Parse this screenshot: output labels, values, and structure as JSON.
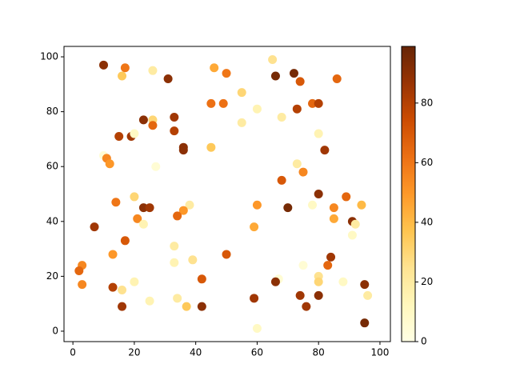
{
  "chart_data": {
    "type": "scatter",
    "x": [
      10,
      17,
      16,
      26,
      31,
      46,
      50,
      65,
      72,
      66,
      74,
      86,
      45,
      49,
      55,
      60,
      55,
      68,
      73,
      78,
      80,
      80,
      82,
      23,
      33,
      26,
      26,
      33,
      15,
      19,
      20,
      36,
      36,
      45,
      10,
      11,
      12,
      27,
      73,
      75,
      68,
      80,
      89,
      94,
      60,
      70,
      85,
      85,
      78,
      91,
      92,
      91,
      20,
      23,
      25,
      14,
      21,
      23,
      38,
      36,
      34,
      7,
      17,
      59,
      33,
      13,
      50,
      39,
      33,
      3,
      2,
      3,
      84,
      83,
      75,
      80,
      80,
      88,
      67,
      66,
      42,
      20,
      13,
      16,
      59,
      74,
      80,
      95,
      96,
      25,
      34,
      37,
      42,
      16,
      76,
      95,
      60
    ],
    "y": [
      97,
      96,
      93,
      95,
      92,
      96,
      94,
      99,
      94,
      93,
      91,
      92,
      83,
      83,
      87,
      81,
      76,
      78,
      81,
      83,
      83,
      72,
      66,
      77,
      78,
      77,
      75,
      73,
      71,
      71,
      72,
      67,
      66,
      67,
      64,
      63,
      61,
      60,
      61,
      58,
      55,
      50,
      49,
      46,
      46,
      45,
      45,
      41,
      46,
      40,
      39,
      35,
      49,
      45,
      45,
      47,
      41,
      39,
      46,
      44,
      42,
      38,
      33,
      38,
      31,
      28,
      28,
      26,
      25,
      24,
      22,
      17,
      27,
      24,
      24,
      20,
      18,
      18,
      19,
      18,
      19,
      18,
      16,
      15,
      12,
      13,
      13,
      17,
      13,
      11,
      12,
      9,
      9,
      9,
      9,
      3,
      1
    ],
    "c": [
      90,
      60,
      35,
      20,
      90,
      45,
      60,
      25,
      95,
      95,
      70,
      65,
      62,
      62,
      30,
      15,
      20,
      20,
      80,
      65,
      80,
      15,
      85,
      90,
      85,
      30,
      65,
      80,
      80,
      85,
      10,
      90,
      90,
      35,
      5,
      55,
      50,
      5,
      20,
      55,
      70,
      90,
      65,
      40,
      50,
      95,
      55,
      45,
      10,
      90,
      20,
      10,
      30,
      90,
      85,
      60,
      55,
      15,
      20,
      50,
      65,
      85,
      70,
      45,
      20,
      50,
      70,
      25,
      15,
      55,
      65,
      55,
      85,
      65,
      5,
      25,
      30,
      10,
      5,
      90,
      70,
      15,
      80,
      25,
      85,
      85,
      90,
      90,
      20,
      15,
      20,
      35,
      90,
      85,
      85,
      95,
      10
    ],
    "colormap": [
      "#ffffe5",
      "#fff7bc",
      "#fee391",
      "#fec44f",
      "#fe9929",
      "#ec7014",
      "#cc4c02",
      "#993404",
      "#662506"
    ],
    "clim": [
      0,
      99
    ],
    "cticks": [
      0,
      20,
      40,
      60,
      80
    ],
    "xlim": [
      -2.9,
      103.4
    ],
    "ylim": [
      -3.8,
      103.8
    ],
    "xticks": [
      0,
      20,
      40,
      60,
      80,
      100
    ],
    "yticks": [
      0,
      20,
      40,
      60,
      80,
      100
    ]
  }
}
